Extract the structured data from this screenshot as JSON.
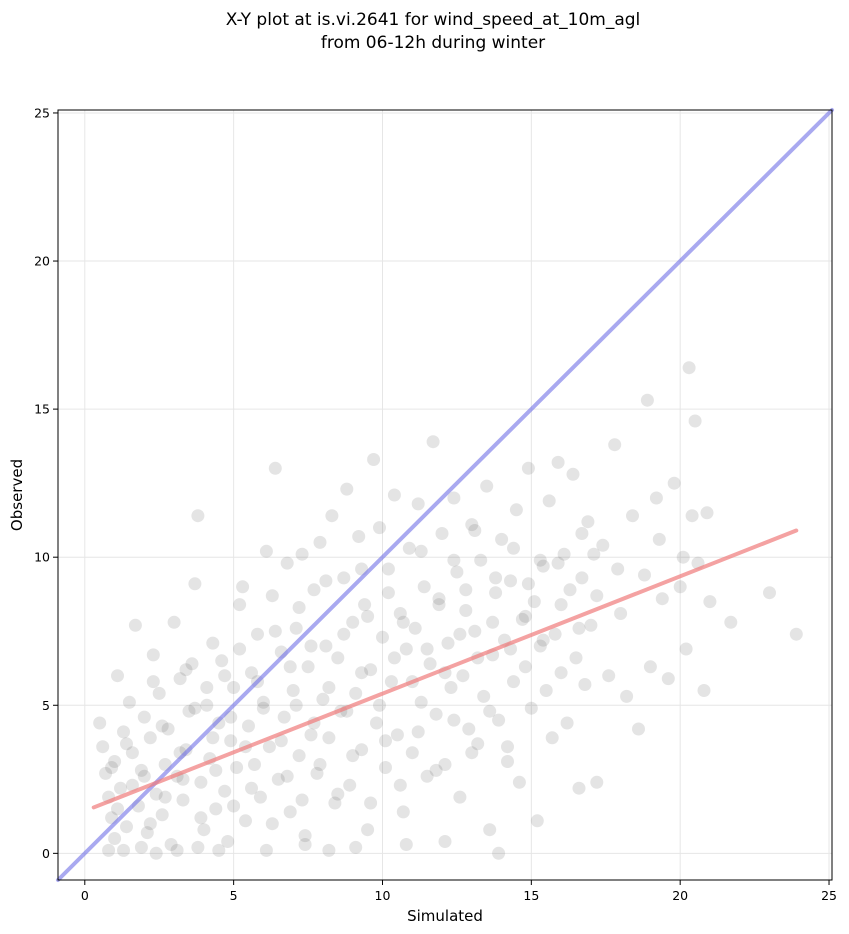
{
  "chart_data": {
    "type": "scatter",
    "title_line1": "X-Y plot at is.vi.2641 for wind_speed_at_10m_agl",
    "title_line2": "from 06-12h during winter",
    "xlabel": "Simulated",
    "ylabel": "Observed",
    "xlim": [
      -0.9,
      25.1
    ],
    "ylim": [
      -0.9,
      25.1
    ],
    "xticks": [
      0,
      5,
      10,
      15,
      20,
      25
    ],
    "yticks": [
      0,
      5,
      10,
      15,
      20,
      25
    ],
    "xtick_labels": [
      "0",
      "5",
      "10",
      "15",
      "20",
      "25"
    ],
    "ytick_labels": [
      "0",
      "5",
      "10",
      "15",
      "20",
      "25"
    ],
    "grid": true,
    "legend": "none",
    "point_color": "#555555",
    "identity_line": {
      "x": [
        -0.9,
        25.1
      ],
      "y": [
        -0.9,
        25.1
      ],
      "color": "#6f6fe6"
    },
    "fit_line": {
      "x": [
        0.3,
        23.9
      ],
      "y": [
        1.55,
        10.9
      ],
      "color": "#ef7b7b"
    },
    "points": [
      [
        0.5,
        4.4
      ],
      [
        0.6,
        3.6
      ],
      [
        0.7,
        2.7
      ],
      [
        0.8,
        1.9
      ],
      [
        0.9,
        1.2
      ],
      [
        1.0,
        0.5
      ],
      [
        1.0,
        3.1
      ],
      [
        1.1,
        6.0
      ],
      [
        1.2,
        2.2
      ],
      [
        1.3,
        4.1
      ],
      [
        1.4,
        0.9
      ],
      [
        1.5,
        5.1
      ],
      [
        1.6,
        3.4
      ],
      [
        1.7,
        7.7
      ],
      [
        1.8,
        1.6
      ],
      [
        1.9,
        2.8
      ],
      [
        2.0,
        4.6
      ],
      [
        2.1,
        0.7
      ],
      [
        2.2,
        3.9
      ],
      [
        2.3,
        6.7
      ],
      [
        2.4,
        2.0
      ],
      [
        2.5,
        5.4
      ],
      [
        2.6,
        1.3
      ],
      [
        2.7,
        3.0
      ],
      [
        2.8,
        4.2
      ],
      [
        2.9,
        0.3
      ],
      [
        3.0,
        7.8
      ],
      [
        3.1,
        2.6
      ],
      [
        3.2,
        5.9
      ],
      [
        3.3,
        1.8
      ],
      [
        3.4,
        3.5
      ],
      [
        3.5,
        4.8
      ],
      [
        3.6,
        6.4
      ],
      [
        3.7,
        9.1
      ],
      [
        3.8,
        11.4
      ],
      [
        3.9,
        2.4
      ],
      [
        4.0,
        0.8
      ],
      [
        4.1,
        5.0
      ],
      [
        4.2,
        3.2
      ],
      [
        4.3,
        7.1
      ],
      [
        4.4,
        1.5
      ],
      [
        4.5,
        4.4
      ],
      [
        4.6,
        6.5
      ],
      [
        4.7,
        2.1
      ],
      [
        4.8,
        0.4
      ],
      [
        4.9,
        3.8
      ],
      [
        5.0,
        5.6
      ],
      [
        5.1,
        2.9
      ],
      [
        5.2,
        8.4
      ],
      [
        5.3,
        9.0
      ],
      [
        5.4,
        1.1
      ],
      [
        5.5,
        4.3
      ],
      [
        5.6,
        6.1
      ],
      [
        5.7,
        3.0
      ],
      [
        5.8,
        7.4
      ],
      [
        5.9,
        1.9
      ],
      [
        6.0,
        5.1
      ],
      [
        6.1,
        10.2
      ],
      [
        6.2,
        3.6
      ],
      [
        6.3,
        8.7
      ],
      [
        6.4,
        13.0
      ],
      [
        6.5,
        2.5
      ],
      [
        6.6,
        6.8
      ],
      [
        6.7,
        4.6
      ],
      [
        6.8,
        9.8
      ],
      [
        6.9,
        1.4
      ],
      [
        7.0,
        5.5
      ],
      [
        7.1,
        7.6
      ],
      [
        7.2,
        3.3
      ],
      [
        7.3,
        10.1
      ],
      [
        7.4,
        0.6
      ],
      [
        7.5,
        6.3
      ],
      [
        7.6,
        4.0
      ],
      [
        7.7,
        8.9
      ],
      [
        7.8,
        2.7
      ],
      [
        7.9,
        10.5
      ],
      [
        8.0,
        5.2
      ],
      [
        8.1,
        7.0
      ],
      [
        8.2,
        3.9
      ],
      [
        8.3,
        11.4
      ],
      [
        8.4,
        1.7
      ],
      [
        8.5,
        6.6
      ],
      [
        8.6,
        4.8
      ],
      [
        8.7,
        9.3
      ],
      [
        8.8,
        12.3
      ],
      [
        8.9,
        2.3
      ],
      [
        9.0,
        7.8
      ],
      [
        9.1,
        5.4
      ],
      [
        9.2,
        10.7
      ],
      [
        9.3,
        3.5
      ],
      [
        9.4,
        8.4
      ],
      [
        9.5,
        0.8
      ],
      [
        9.6,
        6.2
      ],
      [
        9.7,
        13.3
      ],
      [
        9.8,
        4.4
      ],
      [
        9.9,
        11.0
      ],
      [
        10.0,
        7.3
      ],
      [
        10.1,
        2.9
      ],
      [
        10.2,
        9.6
      ],
      [
        10.3,
        5.8
      ],
      [
        10.4,
        12.1
      ],
      [
        10.5,
        4.0
      ],
      [
        10.6,
        8.1
      ],
      [
        10.7,
        1.4
      ],
      [
        10.8,
        6.9
      ],
      [
        10.9,
        10.3
      ],
      [
        11.0,
        3.4
      ],
      [
        11.1,
        7.6
      ],
      [
        11.2,
        11.8
      ],
      [
        11.3,
        5.1
      ],
      [
        11.4,
        9.0
      ],
      [
        11.5,
        2.6
      ],
      [
        11.6,
        6.4
      ],
      [
        11.7,
        13.9
      ],
      [
        11.8,
        4.7
      ],
      [
        11.9,
        8.6
      ],
      [
        12.0,
        10.8
      ],
      [
        12.1,
        3.0
      ],
      [
        12.2,
        7.1
      ],
      [
        12.3,
        5.6
      ],
      [
        12.4,
        12.0
      ],
      [
        12.5,
        9.5
      ],
      [
        12.6,
        1.9
      ],
      [
        12.7,
        6.0
      ],
      [
        12.8,
        8.2
      ],
      [
        12.9,
        4.2
      ],
      [
        13.0,
        11.1
      ],
      [
        13.1,
        7.5
      ],
      [
        13.2,
        3.7
      ],
      [
        13.3,
        9.9
      ],
      [
        13.4,
        5.3
      ],
      [
        13.5,
        12.4
      ],
      [
        13.6,
        0.8
      ],
      [
        13.7,
        6.7
      ],
      [
        13.8,
        8.8
      ],
      [
        13.9,
        4.5
      ],
      [
        14.0,
        10.6
      ],
      [
        14.1,
        7.2
      ],
      [
        14.2,
        3.1
      ],
      [
        14.3,
        9.2
      ],
      [
        14.4,
        5.8
      ],
      [
        14.5,
        11.6
      ],
      [
        14.6,
        2.4
      ],
      [
        14.7,
        7.9
      ],
      [
        14.8,
        6.3
      ],
      [
        14.9,
        13.0
      ],
      [
        15.0,
        4.9
      ],
      [
        15.1,
        8.5
      ],
      [
        15.2,
        1.1
      ],
      [
        15.3,
        7.0
      ],
      [
        15.4,
        9.7
      ],
      [
        15.5,
        5.5
      ],
      [
        15.6,
        11.9
      ],
      [
        15.7,
        3.9
      ],
      [
        15.8,
        7.4
      ],
      [
        15.9,
        13.2
      ],
      [
        16.0,
        6.1
      ],
      [
        16.1,
        10.1
      ],
      [
        16.2,
        4.4
      ],
      [
        16.3,
        8.9
      ],
      [
        16.4,
        12.8
      ],
      [
        16.5,
        6.6
      ],
      [
        16.6,
        2.2
      ],
      [
        16.7,
        9.3
      ],
      [
        16.8,
        5.7
      ],
      [
        16.9,
        11.2
      ],
      [
        17.0,
        7.7
      ],
      [
        17.2,
        2.4
      ],
      [
        17.4,
        10.4
      ],
      [
        17.6,
        6.0
      ],
      [
        17.8,
        13.8
      ],
      [
        18.0,
        8.1
      ],
      [
        18.2,
        5.3
      ],
      [
        18.4,
        11.4
      ],
      [
        18.6,
        4.2
      ],
      [
        18.8,
        9.4
      ],
      [
        18.9,
        15.3
      ],
      [
        19.0,
        6.3
      ],
      [
        19.2,
        12.0
      ],
      [
        19.4,
        8.6
      ],
      [
        19.6,
        5.9
      ],
      [
        19.8,
        12.5
      ],
      [
        20.0,
        9.0
      ],
      [
        20.2,
        6.9
      ],
      [
        20.3,
        16.4
      ],
      [
        20.4,
        11.4
      ],
      [
        20.5,
        14.6
      ],
      [
        20.6,
        9.8
      ],
      [
        20.8,
        5.5
      ],
      [
        20.9,
        11.5
      ],
      [
        21.0,
        8.5
      ],
      [
        21.7,
        7.8
      ],
      [
        23.0,
        8.8
      ],
      [
        23.9,
        7.4
      ],
      [
        0.8,
        0.1
      ],
      [
        1.3,
        0.1
      ],
      [
        1.9,
        0.2
      ],
      [
        2.4,
        0.0
      ],
      [
        3.1,
        0.1
      ],
      [
        3.8,
        0.2
      ],
      [
        4.5,
        0.1
      ],
      [
        6.1,
        0.1
      ],
      [
        7.4,
        0.3
      ],
      [
        8.2,
        0.1
      ],
      [
        9.1,
        0.2
      ],
      [
        10.8,
        0.3
      ],
      [
        12.1,
        0.4
      ],
      [
        13.9,
        0.0
      ],
      [
        1.1,
        1.5
      ],
      [
        1.6,
        2.3
      ],
      [
        2.2,
        1.0
      ],
      [
        2.7,
        1.9
      ],
      [
        3.3,
        2.5
      ],
      [
        3.9,
        1.2
      ],
      [
        4.4,
        2.8
      ],
      [
        5.0,
        1.6
      ],
      [
        5.6,
        2.2
      ],
      [
        6.3,
        1.0
      ],
      [
        6.8,
        2.6
      ],
      [
        7.3,
        1.8
      ],
      [
        7.9,
        3.0
      ],
      [
        8.5,
        2.0
      ],
      [
        9.0,
        3.3
      ],
      [
        9.6,
        1.7
      ],
      [
        10.1,
        3.8
      ],
      [
        10.6,
        2.3
      ],
      [
        11.2,
        4.1
      ],
      [
        11.8,
        2.8
      ],
      [
        12.4,
        4.5
      ],
      [
        13.0,
        3.4
      ],
      [
        13.6,
        4.8
      ],
      [
        14.2,
        3.6
      ],
      [
        0.9,
        2.9
      ],
      [
        1.4,
        3.7
      ],
      [
        2.0,
        2.6
      ],
      [
        2.6,
        4.3
      ],
      [
        3.2,
        3.4
      ],
      [
        3.7,
        4.9
      ],
      [
        4.3,
        3.9
      ],
      [
        4.9,
        4.6
      ],
      [
        5.4,
        3.6
      ],
      [
        6.0,
        4.9
      ],
      [
        6.6,
        3.8
      ],
      [
        7.1,
        5.0
      ],
      [
        7.7,
        4.4
      ],
      [
        8.2,
        5.6
      ],
      [
        8.8,
        4.8
      ],
      [
        9.3,
        6.1
      ],
      [
        9.9,
        5.0
      ],
      [
        10.4,
        6.6
      ],
      [
        11.0,
        5.8
      ],
      [
        11.5,
        6.9
      ],
      [
        12.1,
        6.1
      ],
      [
        12.6,
        7.4
      ],
      [
        13.2,
        6.6
      ],
      [
        13.7,
        7.8
      ],
      [
        14.3,
        6.9
      ],
      [
        14.8,
        8.0
      ],
      [
        15.4,
        7.2
      ],
      [
        16.0,
        8.4
      ],
      [
        16.6,
        7.6
      ],
      [
        17.2,
        8.7
      ],
      [
        5.2,
        6.9
      ],
      [
        6.4,
        7.5
      ],
      [
        7.2,
        8.3
      ],
      [
        8.1,
        9.2
      ],
      [
        9.3,
        9.6
      ],
      [
        10.2,
        8.8
      ],
      [
        11.3,
        10.2
      ],
      [
        12.4,
        9.9
      ],
      [
        13.1,
        10.9
      ],
      [
        14.4,
        10.3
      ],
      [
        15.3,
        9.9
      ],
      [
        16.7,
        10.8
      ],
      [
        17.9,
        9.6
      ],
      [
        19.3,
        10.6
      ],
      [
        20.1,
        10.0
      ],
      [
        2.3,
        5.8
      ],
      [
        3.4,
        6.2
      ],
      [
        4.1,
        5.6
      ],
      [
        4.7,
        6.0
      ],
      [
        5.8,
        5.8
      ],
      [
        6.9,
        6.3
      ],
      [
        7.6,
        7.0
      ],
      [
        8.7,
        7.4
      ],
      [
        9.5,
        8.0
      ],
      [
        10.7,
        7.8
      ],
      [
        11.9,
        8.4
      ],
      [
        12.8,
        8.9
      ],
      [
        13.8,
        9.3
      ],
      [
        14.9,
        9.1
      ],
      [
        15.9,
        9.8
      ],
      [
        17.1,
        10.1
      ]
    ]
  }
}
